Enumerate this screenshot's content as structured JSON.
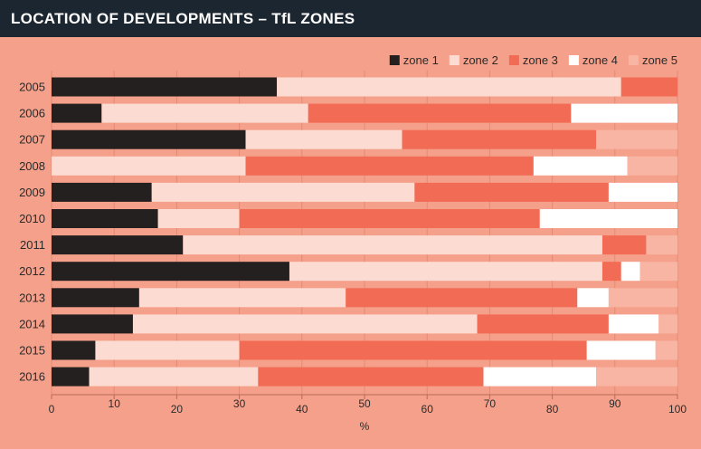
{
  "chart_data": {
    "type": "bar",
    "orientation": "horizontal",
    "stacked": true,
    "title": "LOCATION OF DEVELOPMENTS – TfL ZONES",
    "xlabel": "%",
    "ylabel": "",
    "xlim": [
      0,
      100
    ],
    "xticks": [
      0,
      10,
      20,
      30,
      40,
      50,
      60,
      70,
      80,
      90,
      100
    ],
    "grid": true,
    "legend_position": "top-right",
    "categories": [
      "2005",
      "2006",
      "2007",
      "2008",
      "2009",
      "2010",
      "2011",
      "2012",
      "2013",
      "2014",
      "2015",
      "2016"
    ],
    "series": [
      {
        "name": "zone 1",
        "color": "#24201f",
        "values": [
          36,
          8,
          31,
          0,
          16,
          17,
          21,
          38,
          14,
          13,
          7,
          6
        ]
      },
      {
        "name": "zone 2",
        "color": "#fcdcd2",
        "values": [
          55,
          33,
          25,
          31,
          42,
          13,
          67,
          50,
          33,
          55,
          23,
          27
        ]
      },
      {
        "name": "zone 3",
        "color": "#f26b55",
        "values": [
          9,
          42,
          31,
          46,
          31,
          48,
          7,
          3,
          37,
          21,
          55.5,
          36
        ]
      },
      {
        "name": "zone 4",
        "color": "#ffffff",
        "values": [
          0,
          17,
          0,
          15,
          11,
          22,
          0,
          3,
          5,
          8,
          11,
          18
        ]
      },
      {
        "name": "zone 5",
        "color": "#f8b5a4",
        "values": [
          0,
          0,
          13,
          8,
          0,
          0,
          5,
          6,
          11,
          3,
          3.5,
          13
        ]
      }
    ]
  }
}
